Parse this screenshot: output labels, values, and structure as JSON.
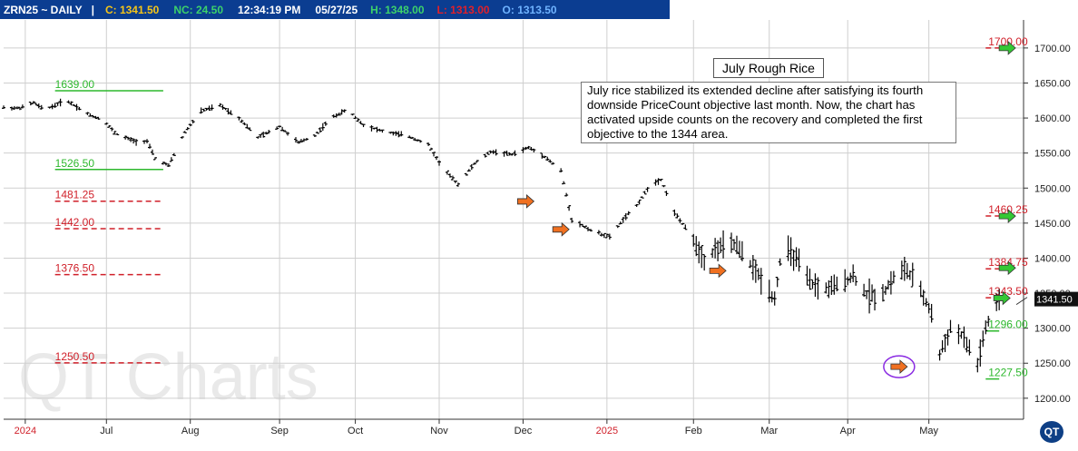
{
  "header": {
    "symbol": "ZRN25 ~ DAILY",
    "separator": "|",
    "close": "C: 1341.50",
    "net_change": "NC: 24.50",
    "time": "12:34:19 PM",
    "date": "05/27/25",
    "high": "H: 1348.00",
    "low": "L: 1313.00",
    "open": "O: 1313.50",
    "colors": {
      "bar": "#0b3d91",
      "close": "#f5c518",
      "net_change": "#3cd16b",
      "high": "#3cd16b",
      "low": "#e0202a",
      "open": "#6fb3ff",
      "text": "#ffffff"
    }
  },
  "annotations": {
    "title": "July Rough Rice",
    "note": "July rice stabilized its extended decline after satisfying its fourth downside PriceCount objective last month.  Now, the chart has activated upside counts on the recovery and completed the first objective to the 1344 area."
  },
  "watermark": "QT Charts",
  "logo_text": "QT",
  "chart_data": {
    "type": "ohlc",
    "y_axis": {
      "ticks": [
        1200,
        1250,
        1300,
        1350,
        1400,
        1450,
        1500,
        1550,
        1600,
        1650,
        1700
      ],
      "range": [
        1170,
        1740
      ],
      "side": "right"
    },
    "x_axis": {
      "labels": [
        {
          "label": "2024",
          "date": "2024-06-01",
          "color": "#d0202a"
        },
        {
          "label": "Jul",
          "date": "2024-07-01",
          "color": "#222222"
        },
        {
          "label": "Aug",
          "date": "2024-08-01",
          "color": "#222222"
        },
        {
          "label": "Sep",
          "date": "2024-09-03",
          "color": "#222222"
        },
        {
          "label": "Oct",
          "date": "2024-10-01",
          "color": "#222222"
        },
        {
          "label": "Nov",
          "date": "2024-11-01",
          "color": "#222222"
        },
        {
          "label": "Dec",
          "date": "2024-12-02",
          "color": "#222222"
        },
        {
          "label": "2025",
          "date": "2025-01-02",
          "color": "#d0202a"
        },
        {
          "label": "Feb",
          "date": "2025-02-03",
          "color": "#222222"
        },
        {
          "label": "Mar",
          "date": "2025-03-03",
          "color": "#222222"
        },
        {
          "label": "Apr",
          "date": "2025-04-01",
          "color": "#222222"
        },
        {
          "label": "May",
          "date": "2025-05-01",
          "color": "#222222"
        }
      ],
      "range": [
        "2024-05-24",
        "2025-06-05"
      ]
    },
    "grid": true,
    "last_price": {
      "value": 1341.5,
      "label": "1341.50"
    },
    "price_levels": [
      {
        "label": "1639.00",
        "value": 1639.0,
        "style": "solid",
        "color": "#2db82d",
        "from": "2024-06-12",
        "to": "2024-07-22",
        "text_at": "2024-06-12"
      },
      {
        "label": "1526.50",
        "value": 1526.5,
        "style": "solid",
        "color": "#2db82d",
        "from": "2024-06-12",
        "to": "2024-07-22",
        "text_at": "2024-06-12"
      },
      {
        "label": "1481.25",
        "value": 1481.25,
        "style": "dashed",
        "color": "#d0202a",
        "from": "2024-06-12",
        "to": "2024-07-22",
        "text_at": "2024-06-12"
      },
      {
        "label": "1442.00",
        "value": 1442.0,
        "style": "dashed",
        "color": "#d0202a",
        "from": "2024-06-12",
        "to": "2024-07-22",
        "text_at": "2024-06-12"
      },
      {
        "label": "1376.50",
        "value": 1376.5,
        "style": "dashed",
        "color": "#d0202a",
        "from": "2024-06-12",
        "to": "2024-07-22",
        "text_at": "2024-06-12"
      },
      {
        "label": "1250.50",
        "value": 1250.5,
        "style": "dashed",
        "color": "#d0202a",
        "from": "2024-06-12",
        "to": "2024-07-22",
        "text_at": "2024-06-12"
      },
      {
        "label": "1700.00",
        "value": 1700.0,
        "style": "dashed",
        "color": "#d0202a",
        "from": "2025-05-22",
        "to": "2025-05-27",
        "text_at": "2025-05-23"
      },
      {
        "label": "1460.25",
        "value": 1460.25,
        "style": "dashed",
        "color": "#d0202a",
        "from": "2025-05-22",
        "to": "2025-05-27",
        "text_at": "2025-05-23"
      },
      {
        "label": "1384.75",
        "value": 1384.75,
        "style": "dashed",
        "color": "#d0202a",
        "from": "2025-05-22",
        "to": "2025-05-27",
        "text_at": "2025-05-23"
      },
      {
        "label": "1343.50",
        "value": 1343.5,
        "style": "dashed",
        "color": "#d0202a",
        "from": "2025-05-22",
        "to": "2025-05-27",
        "text_at": "2025-05-23"
      },
      {
        "label": "1296.00",
        "value": 1296.0,
        "style": "solid",
        "color": "#2db82d",
        "from": "2025-05-22",
        "to": "2025-05-27",
        "text_at": "2025-05-23"
      },
      {
        "label": "1227.50",
        "value": 1227.5,
        "style": "solid",
        "color": "#2db82d",
        "from": "2025-05-22",
        "to": "2025-05-27",
        "text_at": "2025-05-23"
      }
    ],
    "signal_arrows": [
      {
        "date": "2024-12-03",
        "value": 1481,
        "direction": "right",
        "color": "#f07020"
      },
      {
        "date": "2024-12-16",
        "value": 1441,
        "direction": "right",
        "color": "#f07020"
      },
      {
        "date": "2025-02-12",
        "value": 1382,
        "direction": "right",
        "color": "#f07020"
      },
      {
        "date": "2025-04-20",
        "value": 1245,
        "direction": "right",
        "color": "#f07020",
        "circled": true
      },
      {
        "date": "2025-05-30",
        "value": 1700,
        "direction": "right",
        "color": "#34c834"
      },
      {
        "date": "2025-05-30",
        "value": 1460,
        "direction": "right",
        "color": "#34c834"
      },
      {
        "date": "2025-05-30",
        "value": 1386,
        "direction": "right",
        "color": "#34c834"
      },
      {
        "date": "2025-05-28",
        "value": 1343,
        "direction": "right",
        "color": "#34c834"
      }
    ],
    "price_path": [
      [
        "2024-05-24",
        1615
      ],
      [
        "2024-05-30",
        1614
      ],
      [
        "2024-06-04",
        1622
      ],
      [
        "2024-06-08",
        1612
      ],
      [
        "2024-06-12",
        1618
      ],
      [
        "2024-06-16",
        1626
      ],
      [
        "2024-06-20",
        1616
      ],
      [
        "2024-06-25",
        1604
      ],
      [
        "2024-06-30",
        1597
      ],
      [
        "2024-07-04",
        1579
      ],
      [
        "2024-07-08",
        1572
      ],
      [
        "2024-07-12",
        1566
      ],
      [
        "2024-07-16",
        1567
      ],
      [
        "2024-07-19",
        1542
      ],
      [
        "2024-07-24",
        1532
      ],
      [
        "2024-07-30",
        1580
      ],
      [
        "2024-08-05",
        1610
      ],
      [
        "2024-08-12",
        1618
      ],
      [
        "2024-08-19",
        1600
      ],
      [
        "2024-08-26",
        1572
      ],
      [
        "2024-09-03",
        1588
      ],
      [
        "2024-09-10",
        1565
      ],
      [
        "2024-09-16",
        1575
      ],
      [
        "2024-09-22",
        1600
      ],
      [
        "2024-09-28",
        1612
      ],
      [
        "2024-10-04",
        1590
      ],
      [
        "2024-10-12",
        1580
      ],
      [
        "2024-10-20",
        1575
      ],
      [
        "2024-10-28",
        1562
      ],
      [
        "2024-11-02",
        1530
      ],
      [
        "2024-11-08",
        1505
      ],
      [
        "2024-11-14",
        1535
      ],
      [
        "2024-11-20",
        1552
      ],
      [
        "2024-11-28",
        1548
      ],
      [
        "2024-12-04",
        1558
      ],
      [
        "2024-12-10",
        1545
      ],
      [
        "2024-12-16",
        1525
      ],
      [
        "2024-12-20",
        1455
      ],
      [
        "2024-12-27",
        1440
      ],
      [
        "2025-01-03",
        1430
      ],
      [
        "2025-01-08",
        1455
      ],
      [
        "2025-01-13",
        1475
      ],
      [
        "2025-01-18",
        1505
      ],
      [
        "2025-01-22",
        1512
      ],
      [
        "2025-01-27",
        1465
      ],
      [
        "2025-02-02",
        1432
      ],
      [
        "2025-02-07",
        1398
      ],
      [
        "2025-02-12",
        1415
      ],
      [
        "2025-02-18",
        1420
      ],
      [
        "2025-02-24",
        1392
      ],
      [
        "2025-02-28",
        1370
      ],
      [
        "2025-03-05",
        1342
      ],
      [
        "2025-03-08",
        1420
      ],
      [
        "2025-03-13",
        1398
      ],
      [
        "2025-03-18",
        1365
      ],
      [
        "2025-03-23",
        1355
      ],
      [
        "2025-03-28",
        1360
      ],
      [
        "2025-04-03",
        1375
      ],
      [
        "2025-04-08",
        1348
      ],
      [
        "2025-04-13",
        1345
      ],
      [
        "2025-04-18",
        1372
      ],
      [
        "2025-04-22",
        1385
      ],
      [
        "2025-04-27",
        1362
      ],
      [
        "2025-05-02",
        1320
      ],
      [
        "2025-05-05",
        1262
      ],
      [
        "2025-05-09",
        1300
      ],
      [
        "2025-05-13",
        1290
      ],
      [
        "2025-05-16",
        1270
      ],
      [
        "2025-05-19",
        1248
      ],
      [
        "2025-05-22",
        1300
      ],
      [
        "2025-05-24",
        1315
      ],
      [
        "2025-05-27",
        1341.5
      ]
    ]
  }
}
